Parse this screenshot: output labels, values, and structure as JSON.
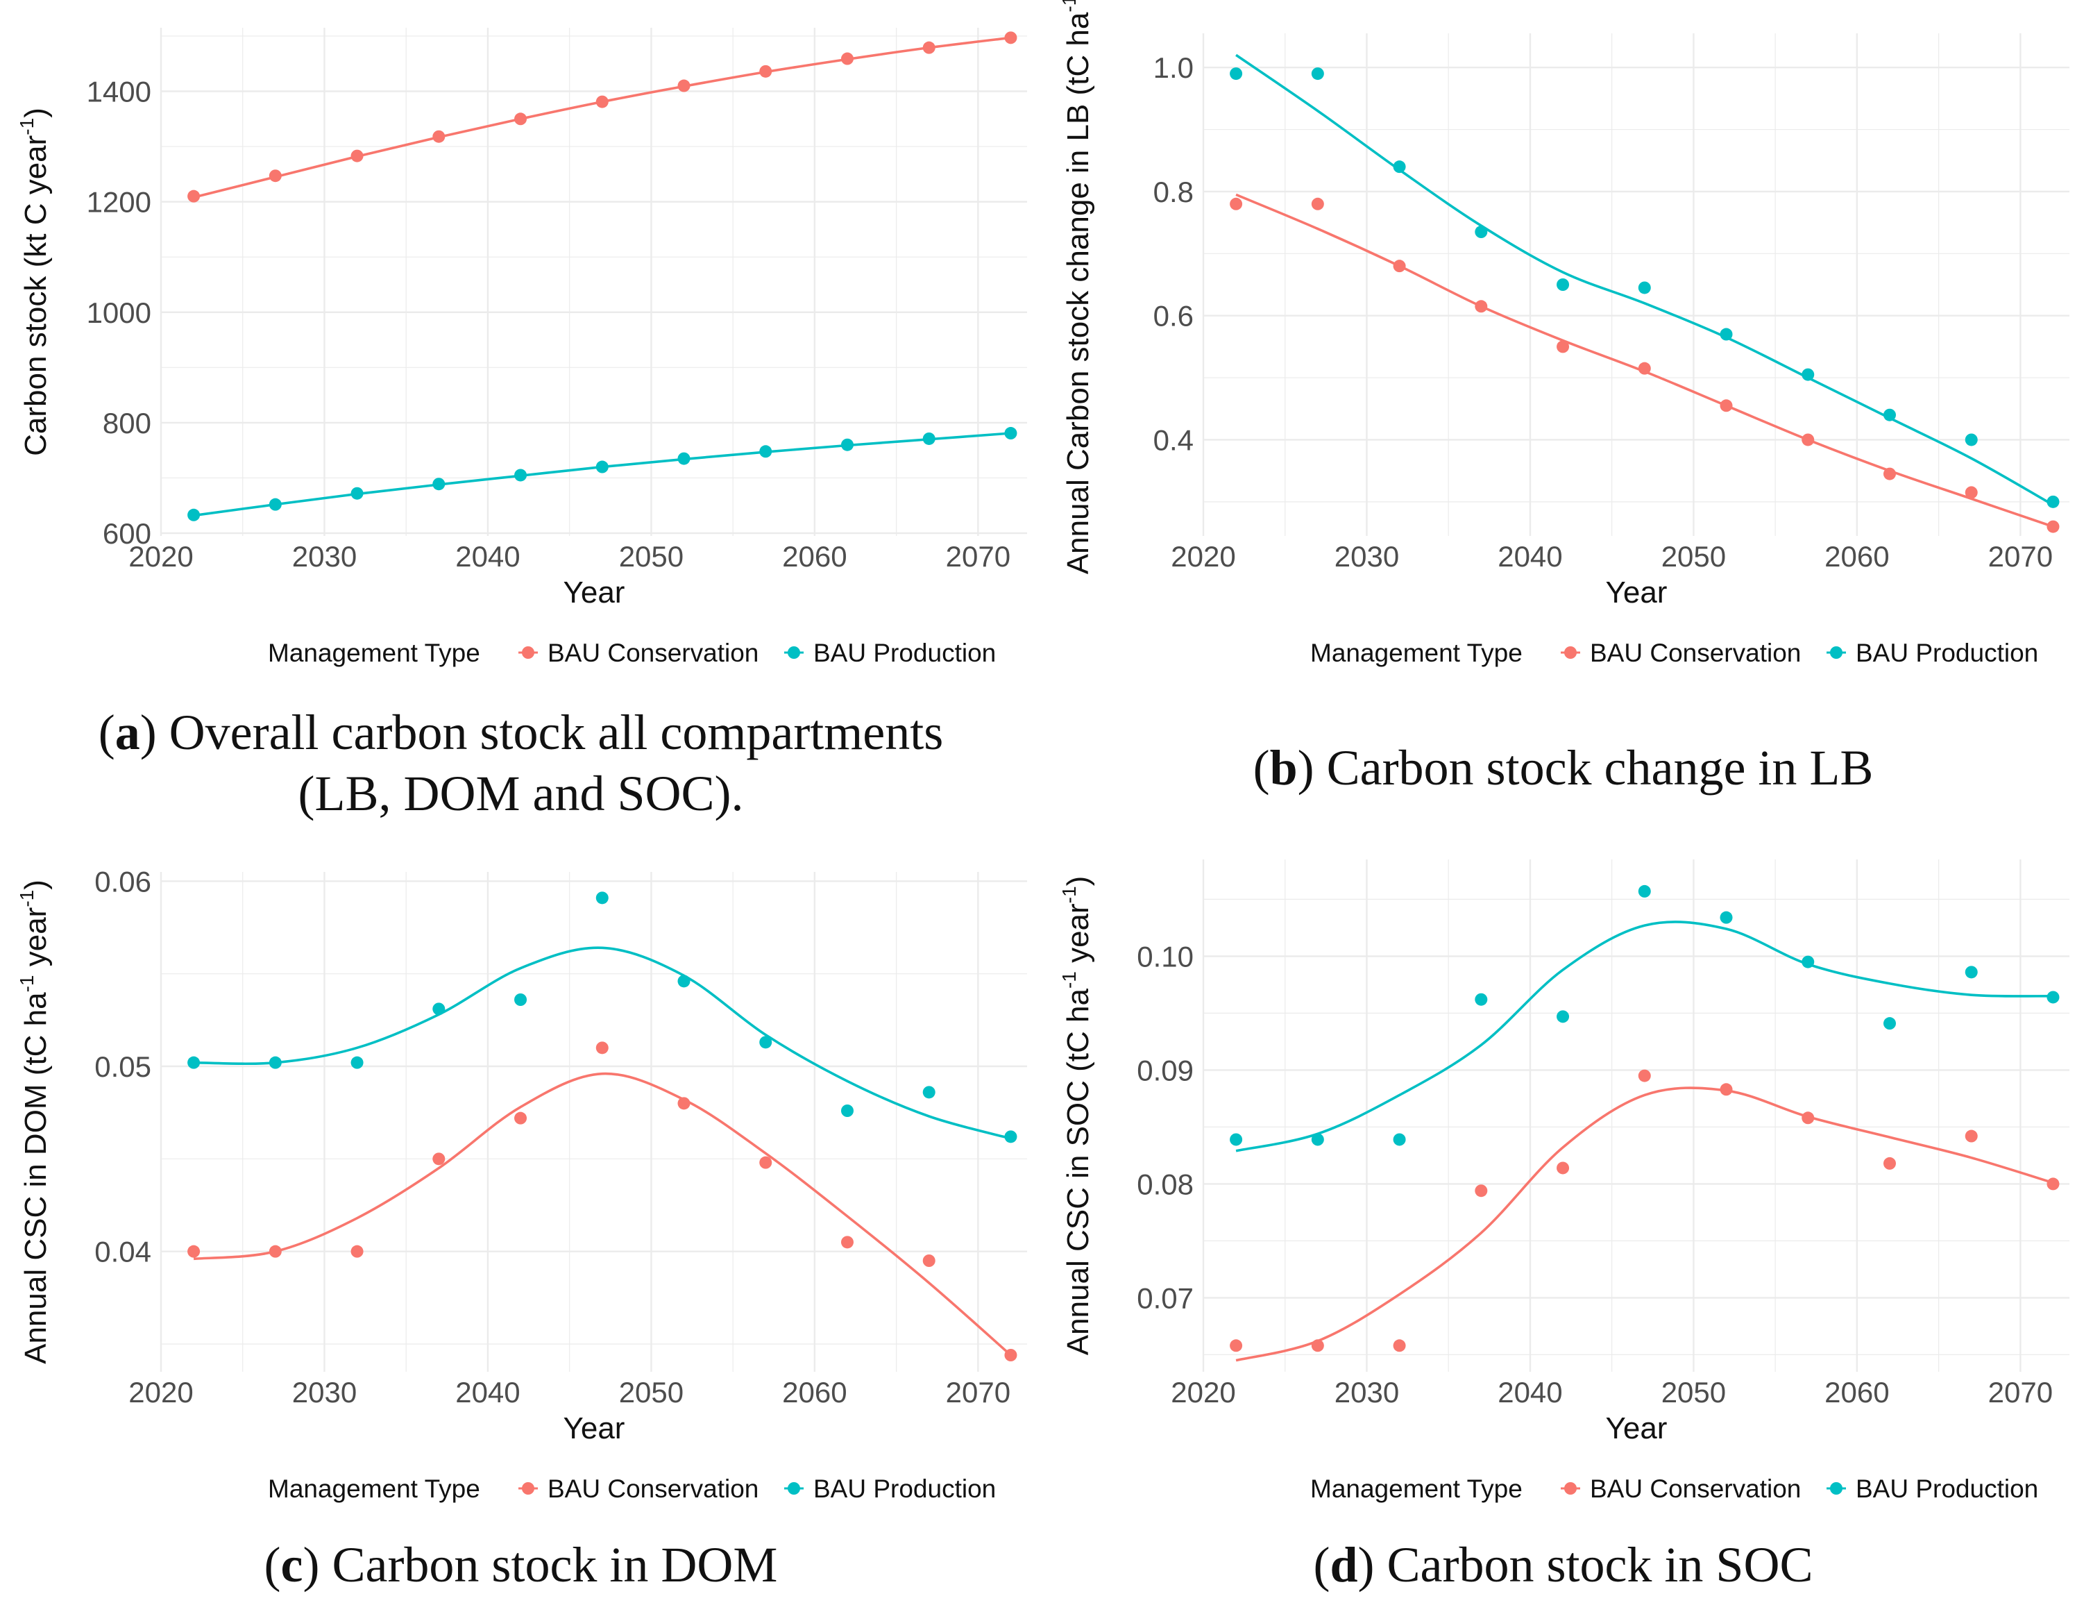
{
  "colors": {
    "conservation": "#F8766D",
    "production": "#00BFC4",
    "grid": "#ebebeb"
  },
  "legend": {
    "title": "Management Type",
    "items": [
      "BAU Conservation",
      "BAU Production"
    ]
  },
  "chart_data": [
    {
      "id": "a",
      "type": "scatter",
      "title": "",
      "xlabel": "Year",
      "ylabel": {
        "main": "Carbon stock (kt C year",
        "sup": "-1",
        "close": ")"
      },
      "xlim": [
        2020,
        2073
      ],
      "ylim": [
        595,
        1515
      ],
      "xticks": [
        2020,
        2030,
        2040,
        2050,
        2060,
        2070
      ],
      "yticks": [
        600,
        800,
        1000,
        1200,
        1400
      ],
      "ytick_labels": [
        "600",
        "800",
        "1000",
        "1200",
        "1400"
      ],
      "x": [
        2022,
        2027,
        2032,
        2037,
        2042,
        2047,
        2052,
        2057,
        2062,
        2067,
        2072
      ],
      "series": [
        {
          "name": "BAU Conservation",
          "values": [
            1210,
            1247,
            1283,
            1318,
            1350,
            1381,
            1410,
            1436,
            1459,
            1479,
            1497
          ],
          "smooth": [
            [
              2022,
              1208
            ],
            [
              2027,
              1245
            ],
            [
              2032,
              1282
            ],
            [
              2037,
              1317
            ],
            [
              2042,
              1350
            ],
            [
              2047,
              1381
            ],
            [
              2052,
              1409
            ],
            [
              2057,
              1435
            ],
            [
              2062,
              1458
            ],
            [
              2067,
              1479
            ],
            [
              2072,
              1497
            ]
          ]
        },
        {
          "name": "BAU Production",
          "values": [
            633,
            652,
            672,
            689,
            705,
            720,
            735,
            748,
            760,
            771,
            781
          ],
          "smooth": [
            [
              2022,
              632
            ],
            [
              2027,
              652
            ],
            [
              2032,
              671
            ],
            [
              2037,
              688
            ],
            [
              2042,
              704
            ],
            [
              2047,
              720
            ],
            [
              2052,
              734
            ],
            [
              2057,
              747
            ],
            [
              2062,
              759
            ],
            [
              2067,
              770
            ],
            [
              2072,
              781
            ]
          ]
        }
      ],
      "caption": {
        "label": "a",
        "text": ") Overall carbon stock all compartments",
        "text2": "(LB, DOM and SOC)."
      }
    },
    {
      "id": "b",
      "type": "scatter",
      "title": "",
      "xlabel": "Year",
      "ylabel": {
        "main": "Annual Carbon stock change in LB (tC ha",
        "sup": "-1",
        "close": ""
      },
      "xlim": [
        2020,
        2073
      ],
      "ylim": [
        0.245,
        1.055
      ],
      "xticks": [
        2020,
        2030,
        2040,
        2050,
        2060,
        2070
      ],
      "yticks": [
        0.4,
        0.6,
        0.8,
        1.0
      ],
      "ytick_labels": [
        "0.4",
        "0.6",
        "0.8",
        "1.0"
      ],
      "x": [
        2022,
        2027,
        2032,
        2037,
        2042,
        2047,
        2052,
        2057,
        2062,
        2067,
        2072
      ],
      "series": [
        {
          "name": "BAU Conservation",
          "values": [
            0.78,
            0.78,
            0.68,
            0.615,
            0.55,
            0.515,
            0.455,
            0.4,
            0.345,
            0.315,
            0.26
          ],
          "smooth": [
            [
              2022,
              0.795
            ],
            [
              2027,
              0.74
            ],
            [
              2032,
              0.68
            ],
            [
              2037,
              0.615
            ],
            [
              2042,
              0.56
            ],
            [
              2047,
              0.51
            ],
            [
              2052,
              0.455
            ],
            [
              2057,
              0.4
            ],
            [
              2062,
              0.35
            ],
            [
              2067,
              0.305
            ],
            [
              2072,
              0.26
            ]
          ]
        },
        {
          "name": "BAU Production",
          "values": [
            0.99,
            0.99,
            0.84,
            0.735,
            0.65,
            0.645,
            0.57,
            0.505,
            0.44,
            0.4,
            0.3
          ],
          "smooth": [
            [
              2022,
              1.02
            ],
            [
              2027,
              0.93
            ],
            [
              2032,
              0.835
            ],
            [
              2037,
              0.745
            ],
            [
              2042,
              0.67
            ],
            [
              2047,
              0.62
            ],
            [
              2052,
              0.565
            ],
            [
              2057,
              0.5
            ],
            [
              2062,
              0.435
            ],
            [
              2067,
              0.37
            ],
            [
              2072,
              0.295
            ]
          ]
        }
      ],
      "caption": {
        "label": "b",
        "text": ") Carbon stock change in LB",
        "text2": ""
      }
    },
    {
      "id": "c",
      "type": "scatter",
      "title": "",
      "xlabel": "Year",
      "ylabel": {
        "main": "Annual CSC in DOM (tC ha",
        "sup": "-1",
        "mid": " year",
        "sup2": "-1",
        "close": ")"
      },
      "xlim": [
        2020,
        2073
      ],
      "ylim": [
        0.0335,
        0.0605
      ],
      "xticks": [
        2020,
        2030,
        2040,
        2050,
        2060,
        2070
      ],
      "yticks": [
        0.04,
        0.05,
        0.06
      ],
      "ytick_labels": [
        "0.04",
        "0.05",
        "0.06"
      ],
      "x": [
        2022,
        2027,
        2032,
        2037,
        2042,
        2047,
        2052,
        2057,
        2062,
        2067,
        2072
      ],
      "series": [
        {
          "name": "BAU Conservation",
          "values": [
            0.04,
            0.04,
            0.04,
            0.045,
            0.0472,
            0.051,
            0.048,
            0.0448,
            0.0405,
            0.0395,
            0.0344
          ],
          "smooth": [
            [
              2022,
              0.0396
            ],
            [
              2027,
              0.04
            ],
            [
              2032,
              0.0418
            ],
            [
              2037,
              0.0445
            ],
            [
              2042,
              0.0478
            ],
            [
              2047,
              0.0496
            ],
            [
              2052,
              0.0482
            ],
            [
              2057,
              0.0453
            ],
            [
              2062,
              0.0419
            ],
            [
              2067,
              0.0383
            ],
            [
              2072,
              0.0344
            ]
          ]
        },
        {
          "name": "BAU Production",
          "values": [
            0.0502,
            0.0502,
            0.0502,
            0.0531,
            0.0536,
            0.0591,
            0.0546,
            0.0513,
            0.0476,
            0.0486,
            0.0462
          ],
          "smooth": [
            [
              2022,
              0.0502
            ],
            [
              2027,
              0.0502
            ],
            [
              2032,
              0.051
            ],
            [
              2037,
              0.0528
            ],
            [
              2042,
              0.0553
            ],
            [
              2047,
              0.0564
            ],
            [
              2052,
              0.0549
            ],
            [
              2057,
              0.0517
            ],
            [
              2062,
              0.0492
            ],
            [
              2067,
              0.0473
            ],
            [
              2072,
              0.0461
            ]
          ]
        }
      ],
      "caption": {
        "label": "c",
        "text": ") Carbon stock in DOM",
        "text2": ""
      }
    },
    {
      "id": "d",
      "type": "scatter",
      "title": "",
      "xlabel": "Year",
      "ylabel": {
        "main": "Annual CSC in SOC (tC ha",
        "sup": "-1",
        "mid": " year",
        "sup2": "-1",
        "close": ")"
      },
      "xlim": [
        2020,
        2073
      ],
      "ylim": [
        0.0635,
        0.1085
      ],
      "xticks": [
        2020,
        2030,
        2040,
        2050,
        2060,
        2070
      ],
      "yticks": [
        0.07,
        0.08,
        0.09,
        0.1
      ],
      "ytick_labels": [
        "0.07",
        "0.08",
        "0.09",
        "0.10"
      ],
      "x": [
        2022,
        2027,
        2032,
        2037,
        2042,
        2047,
        2052,
        2057,
        2062,
        2067,
        2072
      ],
      "series": [
        {
          "name": "BAU Conservation",
          "values": [
            0.0658,
            0.0658,
            0.0658,
            0.0794,
            0.0814,
            0.0895,
            0.0883,
            0.0858,
            0.0818,
            0.0842,
            0.08
          ],
          "smooth": [
            [
              2022,
              0.0645
            ],
            [
              2027,
              0.0662
            ],
            [
              2032,
              0.0703
            ],
            [
              2037,
              0.0757
            ],
            [
              2042,
              0.0832
            ],
            [
              2047,
              0.0878
            ],
            [
              2052,
              0.0882
            ],
            [
              2057,
              0.0859
            ],
            [
              2062,
              0.0841
            ],
            [
              2067,
              0.0823
            ],
            [
              2072,
              0.0801
            ]
          ]
        },
        {
          "name": "BAU Production",
          "values": [
            0.0839,
            0.0839,
            0.0839,
            0.0962,
            0.0947,
            0.1057,
            0.1034,
            0.0995,
            0.0941,
            0.0986,
            0.0964
          ],
          "smooth": [
            [
              2022,
              0.0829
            ],
            [
              2027,
              0.0844
            ],
            [
              2032,
              0.0878
            ],
            [
              2037,
              0.0922
            ],
            [
              2042,
              0.0988
            ],
            [
              2047,
              0.1027
            ],
            [
              2052,
              0.1024
            ],
            [
              2057,
              0.0993
            ],
            [
              2062,
              0.0976
            ],
            [
              2067,
              0.0966
            ],
            [
              2072,
              0.0965
            ]
          ]
        }
      ],
      "caption": {
        "label": "d",
        "text": ") Carbon stock in SOC",
        "text2": ""
      }
    }
  ]
}
